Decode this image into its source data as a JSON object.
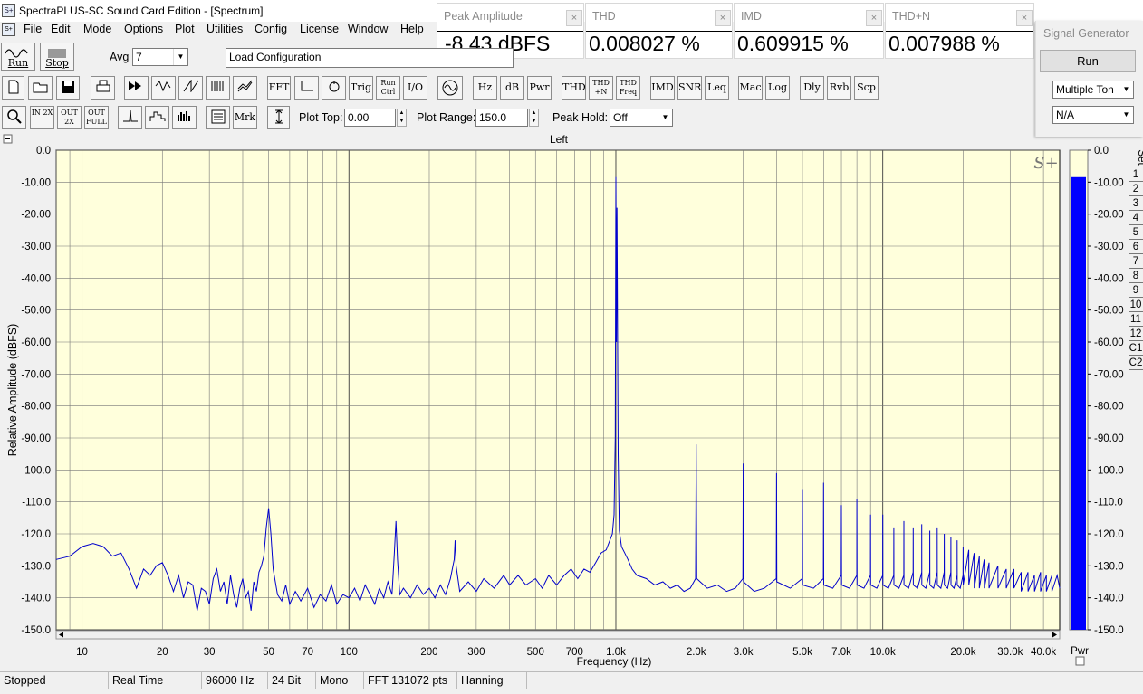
{
  "window": {
    "title": "SpectraPLUS-SC Sound Card Edition - [Spectrum]"
  },
  "menu": [
    "File",
    "Edit",
    "Mode",
    "Options",
    "Plot",
    "Utilities",
    "Config",
    "License",
    "Window",
    "Help"
  ],
  "meters": [
    {
      "label": "Peak Amplitude",
      "value": "-8.43 dBFS"
    },
    {
      "label": "THD",
      "value": "0.008027 %"
    },
    {
      "label": "IMD",
      "value": "0.609915 %"
    },
    {
      "label": "THD+N",
      "value": "0.007988 %"
    }
  ],
  "signal_generator": {
    "title": "Signal Generator",
    "run_label": "Run",
    "mode": "Multiple Ton",
    "option": "N/A"
  },
  "toolbar1": {
    "run_label": "Run",
    "stop_label": "Stop",
    "avg_label": "Avg",
    "avg_value": "7",
    "config_value": "Load Configuration"
  },
  "toolbar2": {
    "fft": "FFT",
    "trig": "Trig",
    "run_ctrl": "Run Ctrl",
    "io": "I/O",
    "hz": "Hz",
    "db": "dB",
    "pwr": "Pwr",
    "thd": "THD",
    "thd_n": "THD +N",
    "thd_freq": "THD Freq",
    "imd": "IMD",
    "snr": "SNR",
    "leq": "Leq",
    "mac": "Mac",
    "log": "Log",
    "dly": "Dly",
    "rvb": "Rvb",
    "scp": "Scp"
  },
  "toolbar3": {
    "in_2x": "IN 2X",
    "out_2x": "OUT 2X",
    "out_full": "OUT FULL",
    "mrk": "Mrk",
    "plot_top_label": "Plot Top:",
    "plot_top_value": "0.00",
    "plot_range_label": "Plot Range:",
    "plot_range_value": "150.0",
    "peak_hold_label": "Peak Hold:",
    "peak_hold_value": "Off"
  },
  "plot": {
    "channel_label": "Left",
    "watermark": "S+",
    "pwr_label": "Pwr",
    "set_label": "Set",
    "set_buttons": [
      "1",
      "2",
      "3",
      "4",
      "5",
      "6",
      "7",
      "8",
      "9",
      "10",
      "11",
      "12",
      "C1",
      "C2"
    ]
  },
  "status": [
    "Stopped",
    "Real Time",
    "96000 Hz",
    "24 Bit",
    "Mono",
    "FFT 131072 pts",
    "Hanning"
  ],
  "colors": {
    "trace": "#0000cc",
    "plot_bg": "#ffffdc",
    "meter_bar": "#0000ff"
  },
  "chart_data": {
    "type": "line",
    "title": "Left",
    "xlabel": "Frequency (Hz)",
    "ylabel": "Relative Amplitude (dBFS)",
    "x_scale": "log",
    "xlim": [
      8,
      46000
    ],
    "ylim": [
      -150,
      0
    ],
    "y_ticks": [
      "0.0",
      "-10.00",
      "-20.00",
      "-30.00",
      "-40.00",
      "-50.00",
      "-60.00",
      "-70.00",
      "-80.00",
      "-90.00",
      "-100.0",
      "-110.0",
      "-120.0",
      "-130.0",
      "-140.0",
      "-150.0"
    ],
    "x_ticks": [
      {
        "v": 10,
        "t": "10"
      },
      {
        "v": 20,
        "t": "20"
      },
      {
        "v": 30,
        "t": "30"
      },
      {
        "v": 50,
        "t": "50"
      },
      {
        "v": 70,
        "t": "70"
      },
      {
        "v": 100,
        "t": "100"
      },
      {
        "v": 200,
        "t": "200"
      },
      {
        "v": 300,
        "t": "300"
      },
      {
        "v": 500,
        "t": "500"
      },
      {
        "v": 700,
        "t": "700"
      },
      {
        "v": 1000,
        "t": "1.0k"
      },
      {
        "v": 2000,
        "t": "2.0k"
      },
      {
        "v": 3000,
        "t": "3.0k"
      },
      {
        "v": 5000,
        "t": "5.0k"
      },
      {
        "v": 7000,
        "t": "7.0k"
      },
      {
        "v": 10000,
        "t": "10.0k"
      },
      {
        "v": 20000,
        "t": "20.0k"
      },
      {
        "v": 30000,
        "t": "30.0k"
      },
      {
        "v": 40000,
        "t": "40.0k"
      }
    ],
    "grid": true,
    "series": [
      {
        "points": [
          [
            8,
            -128
          ],
          [
            9,
            -127
          ],
          [
            10,
            -124
          ],
          [
            11,
            -123
          ],
          [
            12,
            -124
          ],
          [
            13,
            -127
          ],
          [
            14,
            -126
          ],
          [
            15,
            -131
          ],
          [
            16,
            -137
          ],
          [
            17,
            -131
          ],
          [
            18,
            -133
          ],
          [
            19,
            -130
          ],
          [
            20,
            -129
          ],
          [
            21,
            -133
          ],
          [
            22,
            -138
          ],
          [
            23,
            -133
          ],
          [
            24,
            -140
          ],
          [
            25,
            -135
          ],
          [
            26,
            -136
          ],
          [
            27,
            -144
          ],
          [
            28,
            -137
          ],
          [
            29,
            -138
          ],
          [
            30,
            -142
          ],
          [
            31,
            -134
          ],
          [
            32,
            -131
          ],
          [
            33,
            -138
          ],
          [
            34,
            -135
          ],
          [
            35,
            -142
          ],
          [
            36,
            -133
          ],
          [
            37,
            -139
          ],
          [
            38,
            -143
          ],
          [
            39,
            -137
          ],
          [
            40,
            -134
          ],
          [
            41,
            -140
          ],
          [
            42,
            -138
          ],
          [
            43,
            -144
          ],
          [
            44,
            -135
          ],
          [
            45,
            -138
          ],
          [
            46,
            -132
          ],
          [
            47,
            -130
          ],
          [
            48,
            -127
          ],
          [
            49,
            -118
          ],
          [
            50,
            -112
          ],
          [
            51,
            -120
          ],
          [
            52,
            -131
          ],
          [
            54,
            -139
          ],
          [
            56,
            -141
          ],
          [
            58,
            -136
          ],
          [
            60,
            -142
          ],
          [
            63,
            -138
          ],
          [
            66,
            -141
          ],
          [
            70,
            -137
          ],
          [
            74,
            -143
          ],
          [
            78,
            -139
          ],
          [
            82,
            -141
          ],
          [
            86,
            -136
          ],
          [
            90,
            -142
          ],
          [
            95,
            -139
          ],
          [
            100,
            -140
          ],
          [
            105,
            -137
          ],
          [
            110,
            -141
          ],
          [
            115,
            -136
          ],
          [
            120,
            -139
          ],
          [
            125,
            -142
          ],
          [
            130,
            -137
          ],
          [
            135,
            -140
          ],
          [
            140,
            -135
          ],
          [
            145,
            -139
          ],
          [
            148,
            -126
          ],
          [
            150,
            -116
          ],
          [
            152,
            -128
          ],
          [
            155,
            -139
          ],
          [
            160,
            -137
          ],
          [
            170,
            -140
          ],
          [
            180,
            -136
          ],
          [
            190,
            -139
          ],
          [
            200,
            -137
          ],
          [
            210,
            -140
          ],
          [
            220,
            -136
          ],
          [
            230,
            -139
          ],
          [
            240,
            -134
          ],
          [
            248,
            -128
          ],
          [
            250,
            -122
          ],
          [
            252,
            -130
          ],
          [
            260,
            -138
          ],
          [
            280,
            -135
          ],
          [
            300,
            -138
          ],
          [
            320,
            -134
          ],
          [
            350,
            -137
          ],
          [
            380,
            -133
          ],
          [
            400,
            -136
          ],
          [
            430,
            -133
          ],
          [
            460,
            -136
          ],
          [
            500,
            -134
          ],
          [
            530,
            -137
          ],
          [
            560,
            -133
          ],
          [
            600,
            -136
          ],
          [
            640,
            -133
          ],
          [
            680,
            -131
          ],
          [
            720,
            -134
          ],
          [
            760,
            -131
          ],
          [
            800,
            -132
          ],
          [
            840,
            -129
          ],
          [
            880,
            -126
          ],
          [
            920,
            -125
          ],
          [
            950,
            -122
          ],
          [
            970,
            -120
          ],
          [
            985,
            -114
          ],
          [
            995,
            -90
          ],
          [
            1000,
            -8.43
          ],
          [
            1005,
            -60
          ],
          [
            1010,
            -18
          ],
          [
            1020,
            -95
          ],
          [
            1030,
            -119
          ],
          [
            1050,
            -124
          ],
          [
            1080,
            -126
          ],
          [
            1110,
            -128
          ],
          [
            1150,
            -131
          ],
          [
            1200,
            -133
          ],
          [
            1300,
            -134
          ],
          [
            1400,
            -136
          ],
          [
            1500,
            -135
          ],
          [
            1600,
            -137
          ],
          [
            1700,
            -136
          ],
          [
            1800,
            -138
          ],
          [
            1900,
            -137
          ],
          [
            1990,
            -134
          ],
          [
            2000,
            -92
          ],
          [
            2010,
            -134
          ],
          [
            2200,
            -137
          ],
          [
            2400,
            -136
          ],
          [
            2600,
            -138
          ],
          [
            2800,
            -137
          ],
          [
            2990,
            -134
          ],
          [
            3000,
            -98
          ],
          [
            3010,
            -135
          ],
          [
            3300,
            -138
          ],
          [
            3600,
            -137
          ],
          [
            3990,
            -134
          ],
          [
            4000,
            -101
          ],
          [
            4010,
            -135
          ],
          [
            4500,
            -137
          ],
          [
            4990,
            -134
          ],
          [
            5000,
            -106
          ],
          [
            5010,
            -136
          ],
          [
            5500,
            -137
          ],
          [
            5990,
            -134
          ],
          [
            6000,
            -104
          ],
          [
            6010,
            -136
          ],
          [
            6500,
            -137
          ],
          [
            6990,
            -133
          ],
          [
            7000,
            -111
          ],
          [
            7010,
            -136
          ],
          [
            7500,
            -137
          ],
          [
            7990,
            -133
          ],
          [
            8000,
            -109
          ],
          [
            8010,
            -136
          ],
          [
            8500,
            -137
          ],
          [
            8990,
            -133
          ],
          [
            9000,
            -114
          ],
          [
            9010,
            -136
          ],
          [
            9500,
            -137
          ],
          [
            9990,
            -133
          ],
          [
            10000,
            -114
          ],
          [
            10010,
            -136
          ],
          [
            10500,
            -137
          ],
          [
            10990,
            -133
          ],
          [
            11000,
            -118
          ],
          [
            11010,
            -136
          ],
          [
            11500,
            -137
          ],
          [
            11990,
            -133
          ],
          [
            12000,
            -116
          ],
          [
            12010,
            -136
          ],
          [
            12500,
            -137
          ],
          [
            12990,
            -132
          ],
          [
            13000,
            -118
          ],
          [
            13010,
            -136
          ],
          [
            13500,
            -137
          ],
          [
            13990,
            -132
          ],
          [
            14000,
            -117
          ],
          [
            14010,
            -136
          ],
          [
            14500,
            -137
          ],
          [
            14990,
            -132
          ],
          [
            15000,
            -119
          ],
          [
            15010,
            -136
          ],
          [
            15500,
            -137
          ],
          [
            15990,
            -132
          ],
          [
            16000,
            -118
          ],
          [
            16010,
            -136
          ],
          [
            16500,
            -137
          ],
          [
            16990,
            -132
          ],
          [
            17000,
            -120
          ],
          [
            17010,
            -136
          ],
          [
            17500,
            -137
          ],
          [
            17990,
            -132
          ],
          [
            18000,
            -121
          ],
          [
            18010,
            -136
          ],
          [
            18500,
            -137
          ],
          [
            18990,
            -133
          ],
          [
            19000,
            -122
          ],
          [
            19010,
            -136
          ],
          [
            19500,
            -137
          ],
          [
            19990,
            -133
          ],
          [
            20000,
            -124
          ],
          [
            20010,
            -136
          ],
          [
            21000,
            -125
          ],
          [
            21010,
            -136
          ],
          [
            22000,
            -126
          ],
          [
            22010,
            -137
          ],
          [
            23000,
            -127
          ],
          [
            23010,
            -137
          ],
          [
            24000,
            -128
          ],
          [
            24010,
            -137
          ],
          [
            25000,
            -129
          ],
          [
            25010,
            -137
          ],
          [
            27000,
            -130
          ],
          [
            27010,
            -137
          ],
          [
            29000,
            -131
          ],
          [
            29010,
            -137
          ],
          [
            31000,
            -131
          ],
          [
            31010,
            -137
          ],
          [
            33000,
            -132
          ],
          [
            33010,
            -138
          ],
          [
            35000,
            -132
          ],
          [
            35010,
            -138
          ],
          [
            37000,
            -133
          ],
          [
            37010,
            -138
          ],
          [
            39000,
            -132
          ],
          [
            39010,
            -138
          ],
          [
            41000,
            -133
          ],
          [
            41010,
            -138
          ],
          [
            43000,
            -133
          ],
          [
            43010,
            -138
          ],
          [
            45000,
            -133
          ],
          [
            46000,
            -137
          ]
        ]
      }
    ],
    "meter": {
      "label": "Pwr",
      "value_dbfs": -8.43,
      "ylim": [
        -150,
        0
      ]
    }
  }
}
